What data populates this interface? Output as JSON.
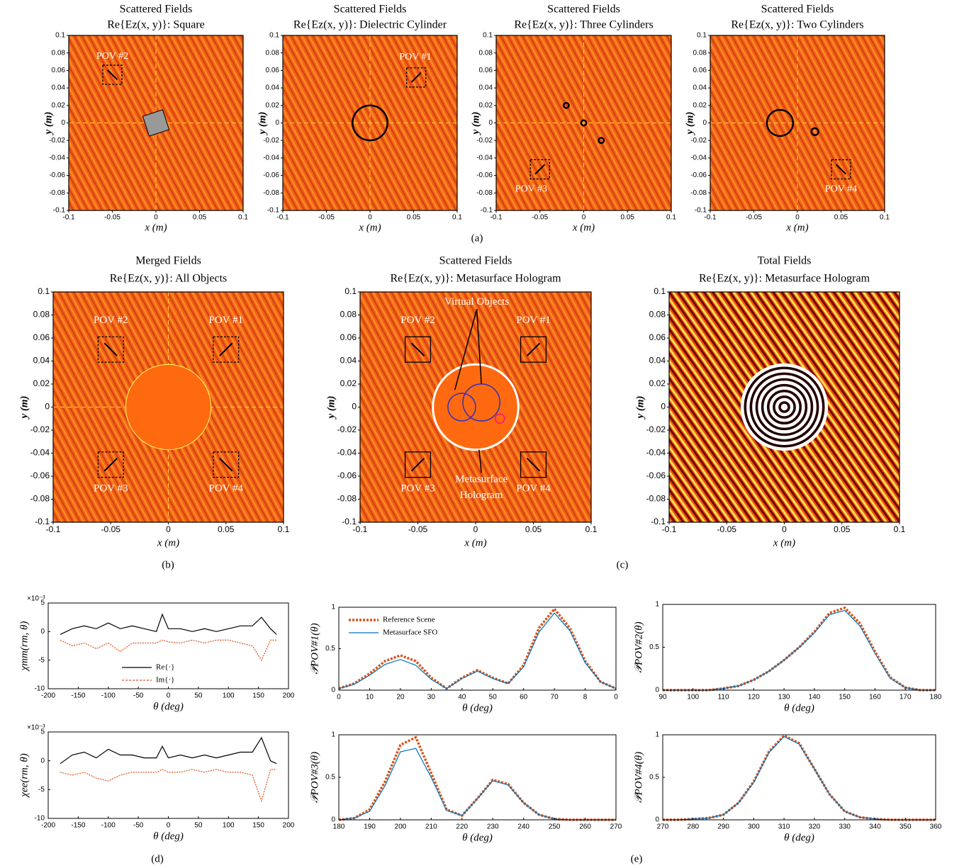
{
  "figure_labels": [
    "(a)",
    "(b)",
    "(c)",
    "(d)",
    "(e)"
  ],
  "chart_data": [
    {
      "type": "heatmap",
      "title": "Scattered Fields",
      "subtitle": "Re{Ez(x, y)}: Square",
      "xlabel": "x (m)",
      "ylabel": "y (m)",
      "xlim": [
        -0.1,
        0.1
      ],
      "ylim": [
        -0.1,
        0.1
      ],
      "xticks": [
        -0.1,
        -0.05,
        0,
        0.05,
        0.1
      ],
      "yticks": [
        -0.1,
        -0.08,
        -0.06,
        -0.04,
        -0.02,
        0,
        0.02,
        0.04,
        0.06,
        0.08,
        0.1
      ],
      "annotations": [
        "POV #2"
      ]
    },
    {
      "type": "heatmap",
      "title": "Scattered Fields",
      "subtitle": "Re{Ez(x, y)}: Dielectric Cylinder",
      "xlabel": "x (m)",
      "ylabel": "y (m)",
      "xlim": [
        -0.1,
        0.1
      ],
      "ylim": [
        -0.1,
        0.1
      ],
      "xticks": [
        -0.1,
        -0.05,
        0,
        0.05,
        0.1
      ],
      "yticks": [
        -0.1,
        -0.08,
        -0.06,
        -0.04,
        -0.02,
        0,
        0.02,
        0.04,
        0.06,
        0.08,
        0.1
      ],
      "annotations": [
        "POV #1"
      ]
    },
    {
      "type": "heatmap",
      "title": "Scattered Fields",
      "subtitle": "Re{Ez(x, y)}: Three Cylinders",
      "xlabel": "x (m)",
      "ylabel": "y (m)",
      "xlim": [
        -0.1,
        0.1
      ],
      "ylim": [
        -0.1,
        0.1
      ],
      "xticks": [
        -0.1,
        -0.05,
        0,
        0.05,
        0.1
      ],
      "yticks": [
        -0.1,
        -0.08,
        -0.06,
        -0.04,
        -0.02,
        0,
        0.02,
        0.04,
        0.06,
        0.08,
        0.1
      ],
      "annotations": [
        "POV #3"
      ]
    },
    {
      "type": "heatmap",
      "title": "Scattered Fields",
      "subtitle": "Re{Ez(x, y)}: Two Cylinders",
      "xlabel": "x (m)",
      "ylabel": "y (m)",
      "xlim": [
        -0.1,
        0.1
      ],
      "ylim": [
        -0.1,
        0.1
      ],
      "xticks": [
        -0.1,
        -0.05,
        0,
        0.05,
        0.1
      ],
      "yticks": [
        -0.1,
        -0.08,
        -0.06,
        -0.04,
        -0.02,
        0,
        0.02,
        0.04,
        0.06,
        0.08,
        0.1
      ],
      "annotations": [
        "POV #4"
      ]
    },
    {
      "type": "heatmap",
      "title": "Merged Fields",
      "subtitle": "Re{Ez(x, y)}: All Objects",
      "xlabel": "x (m)",
      "ylabel": "y (m)",
      "xlim": [
        -0.1,
        0.1
      ],
      "ylim": [
        -0.1,
        0.1
      ],
      "xticks": [
        -0.1,
        -0.05,
        0,
        0.05,
        0.1
      ],
      "yticks": [
        -0.1,
        -0.08,
        -0.06,
        -0.04,
        -0.02,
        0,
        0.02,
        0.04,
        0.06,
        0.08,
        0.1
      ],
      "annotations": [
        "POV #2",
        "POV #1",
        "POV #3",
        "POV #4"
      ]
    },
    {
      "type": "heatmap",
      "title": "Scattered Fields",
      "subtitle": "Re{Ez(x, y)}: Metasurface Hologram",
      "xlabel": "x (m)",
      "ylabel": "y (m)",
      "xlim": [
        -0.1,
        0.1
      ],
      "ylim": [
        -0.1,
        0.1
      ],
      "xticks": [
        -0.1,
        -0.05,
        0,
        0.05,
        0.1
      ],
      "yticks": [
        -0.1,
        -0.08,
        -0.06,
        -0.04,
        -0.02,
        0,
        0.02,
        0.04,
        0.06,
        0.08,
        0.1
      ],
      "annotations": [
        "POV #2",
        "POV #1",
        "POV #3",
        "POV #4",
        "Virtual Objects",
        "Metasurface",
        "Hologram"
      ]
    },
    {
      "type": "heatmap",
      "title": "Total Fields",
      "subtitle": "Re{Ez(x, y)}: Metasurface Hologram",
      "xlabel": "x (m)",
      "ylabel": "y (m)",
      "xlim": [
        -0.1,
        0.1
      ],
      "ylim": [
        -0.1,
        0.1
      ],
      "xticks": [
        -0.1,
        -0.05,
        0,
        0.05,
        0.1
      ],
      "yticks": [
        -0.1,
        -0.08,
        -0.06,
        -0.04,
        -0.02,
        0,
        0.02,
        0.04,
        0.06,
        0.08,
        0.1
      ],
      "annotations": []
    },
    {
      "type": "line",
      "xlabel": "θ (deg)",
      "ylabel": "χmm(rm, θ)",
      "y_multiplier": "×10⁻³",
      "xlim": [
        -200,
        200
      ],
      "ylim": [
        -10,
        5
      ],
      "xticks": [
        -200,
        -150,
        -100,
        -50,
        0,
        50,
        100,
        150,
        200
      ],
      "yticks": [
        -10,
        -5,
        0,
        5
      ],
      "legend": "lower left",
      "x": [
        -180,
        -160,
        -140,
        -120,
        -100,
        -80,
        -60,
        -40,
        -20,
        -10,
        0,
        20,
        40,
        60,
        80,
        100,
        120,
        140,
        155,
        170,
        180
      ],
      "series": [
        {
          "name": "Re{·}",
          "color": "#000000",
          "dash": "solid",
          "values": [
            -0.5,
            0.5,
            1,
            0.5,
            1.5,
            0.5,
            1,
            0.5,
            0,
            3,
            0.5,
            0.5,
            0,
            0.5,
            0,
            0.5,
            1,
            1,
            2.5,
            0.5,
            -0.5
          ]
        },
        {
          "name": "Im{·}",
          "color": "#d95319",
          "dash": "dotted",
          "values": [
            -1.5,
            -2.5,
            -2,
            -3,
            -2,
            -3.5,
            -2,
            -2,
            -2,
            -1.5,
            -1.8,
            -2,
            -1.5,
            -2,
            -1.5,
            -1.5,
            -2,
            -2.5,
            -5,
            -1.5,
            -1.5
          ]
        }
      ]
    },
    {
      "type": "line",
      "xlabel": "θ (deg)",
      "ylabel": "χee(rm, θ)",
      "y_multiplier": "×10⁻³",
      "xlim": [
        -200,
        200
      ],
      "ylim": [
        -10,
        5
      ],
      "xticks": [
        -200,
        -150,
        -100,
        -50,
        0,
        50,
        100,
        150,
        200
      ],
      "yticks": [
        -10,
        -5,
        0,
        5
      ],
      "legend": false,
      "x": [
        -180,
        -160,
        -140,
        -120,
        -100,
        -80,
        -60,
        -40,
        -20,
        -10,
        0,
        20,
        40,
        60,
        80,
        100,
        120,
        140,
        155,
        170,
        180
      ],
      "series": [
        {
          "color": "#000000",
          "dash": "solid",
          "values": [
            -0.5,
            1,
            1.5,
            0.5,
            2,
            1,
            1,
            0.5,
            0.5,
            2.5,
            0.5,
            1,
            0.5,
            1,
            0.5,
            1,
            1.5,
            1.5,
            4,
            0,
            -0.5
          ]
        },
        {
          "color": "#d95319",
          "dash": "dotted",
          "values": [
            -2,
            -2.5,
            -2,
            -3,
            -3.5,
            -2.5,
            -2,
            -2,
            -2,
            -1.5,
            -2,
            -2,
            -1.5,
            -2,
            -1.5,
            -2,
            -2,
            -2.5,
            -7,
            -1.5,
            -1.5
          ]
        }
      ]
    },
    {
      "type": "line",
      "xlabel": "θ (deg)",
      "ylabel": "𝒫POV#1(θ)",
      "xlim": [
        0,
        90
      ],
      "ylim": [
        0,
        1
      ],
      "xticks": [
        0,
        10,
        20,
        30,
        40,
        50,
        60,
        70,
        {
          "value": 80,
          "label": "8"
        },
        {
          "value": 90,
          "label": "0"
        }
      ],
      "yticks": [
        0,
        0.5,
        1
      ],
      "legend": "upper left",
      "x": [
        0,
        5,
        10,
        15,
        20,
        25,
        30,
        35,
        40,
        45,
        50,
        55,
        60,
        65,
        70,
        75,
        80,
        85,
        90
      ],
      "series": [
        {
          "name": "Reference Scene",
          "color": "#d95319",
          "dash": "dotted",
          "values": [
            0.02,
            0.08,
            0.2,
            0.35,
            0.42,
            0.35,
            0.15,
            0.02,
            0.15,
            0.24,
            0.15,
            0.08,
            0.3,
            0.75,
            0.98,
            0.75,
            0.35,
            0.1,
            0.02
          ]
        },
        {
          "name": "Metasurface SFO",
          "color": "#0072bd",
          "dash": "solid",
          "values": [
            0.02,
            0.07,
            0.18,
            0.31,
            0.37,
            0.3,
            0.13,
            0.02,
            0.14,
            0.23,
            0.14,
            0.08,
            0.28,
            0.7,
            0.93,
            0.72,
            0.33,
            0.1,
            0.02
          ]
        }
      ]
    },
    {
      "type": "line",
      "xlabel": "θ (deg)",
      "ylabel": "𝒫POV#2(θ)",
      "xlim": [
        90,
        180
      ],
      "ylim": [
        0,
        1
      ],
      "xticks": [
        90,
        100,
        110,
        120,
        130,
        140,
        150,
        160,
        170,
        180
      ],
      "yticks": [
        0,
        0.5,
        1
      ],
      "legend": false,
      "x": [
        90,
        95,
        100,
        105,
        110,
        115,
        120,
        125,
        130,
        135,
        140,
        145,
        150,
        155,
        160,
        165,
        170,
        175,
        180
      ],
      "series": [
        {
          "color": "#d95319",
          "dash": "dotted",
          "values": [
            0,
            0,
            0,
            0,
            0.02,
            0.05,
            0.12,
            0.22,
            0.35,
            0.5,
            0.68,
            0.9,
            0.96,
            0.78,
            0.45,
            0.15,
            0.03,
            0,
            0
          ]
        },
        {
          "color": "#0072bd",
          "dash": "solid",
          "values": [
            0,
            0,
            0,
            0,
            0.02,
            0.05,
            0.12,
            0.22,
            0.35,
            0.5,
            0.67,
            0.88,
            0.93,
            0.75,
            0.43,
            0.14,
            0.03,
            0,
            0
          ]
        }
      ]
    },
    {
      "type": "line",
      "xlabel": "θ (deg)",
      "ylabel": "𝒫POV#3(θ)",
      "xlim": [
        180,
        270
      ],
      "ylim": [
        0,
        1
      ],
      "xticks": [
        180,
        190,
        200,
        210,
        220,
        230,
        240,
        250,
        260,
        270
      ],
      "yticks": [
        0,
        0.5,
        1
      ],
      "legend": false,
      "x": [
        180,
        185,
        190,
        195,
        200,
        205,
        210,
        215,
        220,
        225,
        230,
        235,
        240,
        245,
        250,
        255,
        260,
        265,
        270
      ],
      "series": [
        {
          "color": "#d95319",
          "dash": "dotted",
          "values": [
            0,
            0.02,
            0.12,
            0.45,
            0.88,
            0.97,
            0.55,
            0.12,
            0.05,
            0.25,
            0.47,
            0.42,
            0.2,
            0.06,
            0.01,
            0,
            0,
            0,
            0
          ]
        },
        {
          "color": "#0072bd",
          "dash": "solid",
          "values": [
            0,
            0.02,
            0.1,
            0.4,
            0.8,
            0.84,
            0.5,
            0.11,
            0.05,
            0.25,
            0.46,
            0.41,
            0.2,
            0.06,
            0.01,
            0,
            0,
            0,
            0
          ]
        }
      ]
    },
    {
      "type": "line",
      "xlabel": "θ (deg)",
      "ylabel": "𝒫POV#4(θ)",
      "xlim": [
        270,
        360
      ],
      "ylim": [
        0,
        1
      ],
      "xticks": [
        270,
        280,
        290,
        300,
        310,
        320,
        330,
        340,
        350,
        360
      ],
      "yticks": [
        0,
        0.5,
        1
      ],
      "legend": false,
      "x": [
        270,
        275,
        280,
        285,
        290,
        295,
        300,
        305,
        310,
        315,
        320,
        325,
        330,
        335,
        340,
        345,
        350,
        355,
        360
      ],
      "series": [
        {
          "color": "#d95319",
          "dash": "dotted",
          "values": [
            0,
            0,
            0.01,
            0.02,
            0.06,
            0.2,
            0.45,
            0.8,
            0.99,
            0.9,
            0.6,
            0.3,
            0.1,
            0.03,
            0.01,
            0,
            0,
            0,
            0
          ]
        },
        {
          "color": "#0072bd",
          "dash": "solid",
          "values": [
            0,
            0,
            0.01,
            0.02,
            0.06,
            0.2,
            0.44,
            0.79,
            0.98,
            0.89,
            0.6,
            0.3,
            0.1,
            0.03,
            0.01,
            0,
            0,
            0,
            0
          ]
        }
      ]
    }
  ]
}
